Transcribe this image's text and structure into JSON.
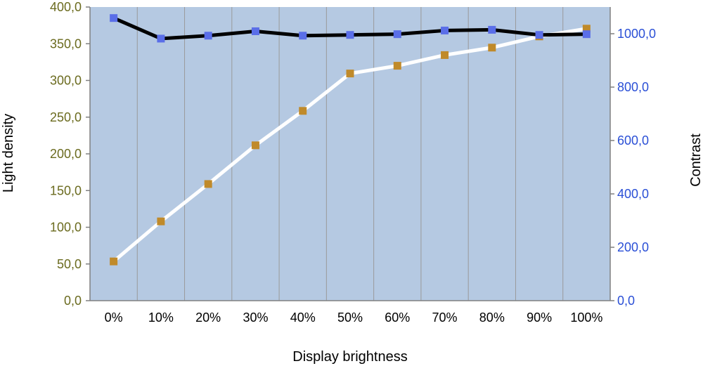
{
  "chart_data": {
    "type": "line",
    "xlabel": "Display brightness",
    "ylabel_left": "Light density",
    "ylabel_right": "Contrast",
    "categories": [
      "0%",
      "10%",
      "20%",
      "30%",
      "40%",
      "50%",
      "60%",
      "70%",
      "80%",
      "90%",
      "100%"
    ],
    "y_left": {
      "min": 0,
      "max": 400,
      "step": 50,
      "tick_labels": [
        "0,0",
        "50,0",
        "100,0",
        "150,0",
        "200,0",
        "250,0",
        "300,0",
        "350,0",
        "400,0"
      ]
    },
    "y_right": {
      "min": 0,
      "max": 1100,
      "step": 200,
      "tick_labels": [
        "0,0",
        "200,0",
        "400,0",
        "600,0",
        "800,0",
        "1000,0"
      ]
    },
    "series": [
      {
        "axis": "left",
        "line_color": "#000000",
        "marker_color": "#5a6ee8",
        "values": [
          385,
          357,
          361,
          367,
          361,
          362,
          363,
          368,
          369,
          362,
          363
        ]
      },
      {
        "axis": "right",
        "line_color": "#ffffff",
        "marker_color": "#c08a2a",
        "values": [
          147,
          297,
          437,
          582,
          711,
          851,
          880,
          920,
          948,
          990,
          1019
        ]
      }
    ],
    "grid": "vertical",
    "plot_background": "#b5c9e2",
    "left_tick_color": "#6b6b1f",
    "right_tick_color": "#2a4fd6"
  }
}
